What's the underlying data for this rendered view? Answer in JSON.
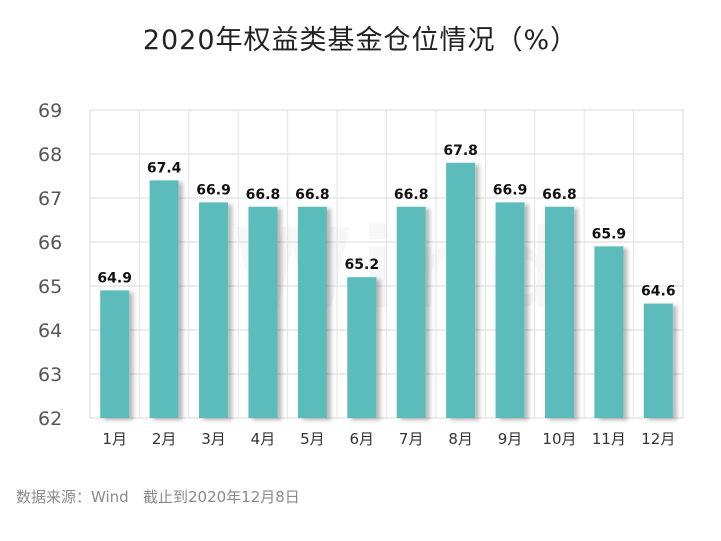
{
  "chart_data": {
    "type": "bar",
    "title": "2020年权益类基金仓位情况（%）",
    "categories": [
      "1月",
      "2月",
      "3月",
      "4月",
      "5月",
      "6月",
      "7月",
      "8月",
      "9月",
      "10月",
      "11月",
      "12月"
    ],
    "values": [
      64.9,
      67.4,
      66.9,
      66.8,
      66.8,
      65.2,
      66.8,
      67.8,
      66.9,
      66.8,
      65.9,
      64.6
    ],
    "data_labels": [
      "64.9",
      "67.4",
      "66.9",
      "66.8",
      "66.8",
      "65.2",
      "66.8",
      "67.8",
      "66.9",
      "66.8",
      "65.9",
      "64.6"
    ],
    "ylim": [
      62,
      69
    ],
    "yticks": [
      "62",
      "63",
      "64",
      "65",
      "66",
      "67",
      "68",
      "69"
    ],
    "xlabel": "",
    "ylabel": "",
    "grid": true,
    "bar_color": "#5bbcbc",
    "source": "数据来源：Wind   截止到2020年12月8日",
    "watermark": "Wind"
  }
}
